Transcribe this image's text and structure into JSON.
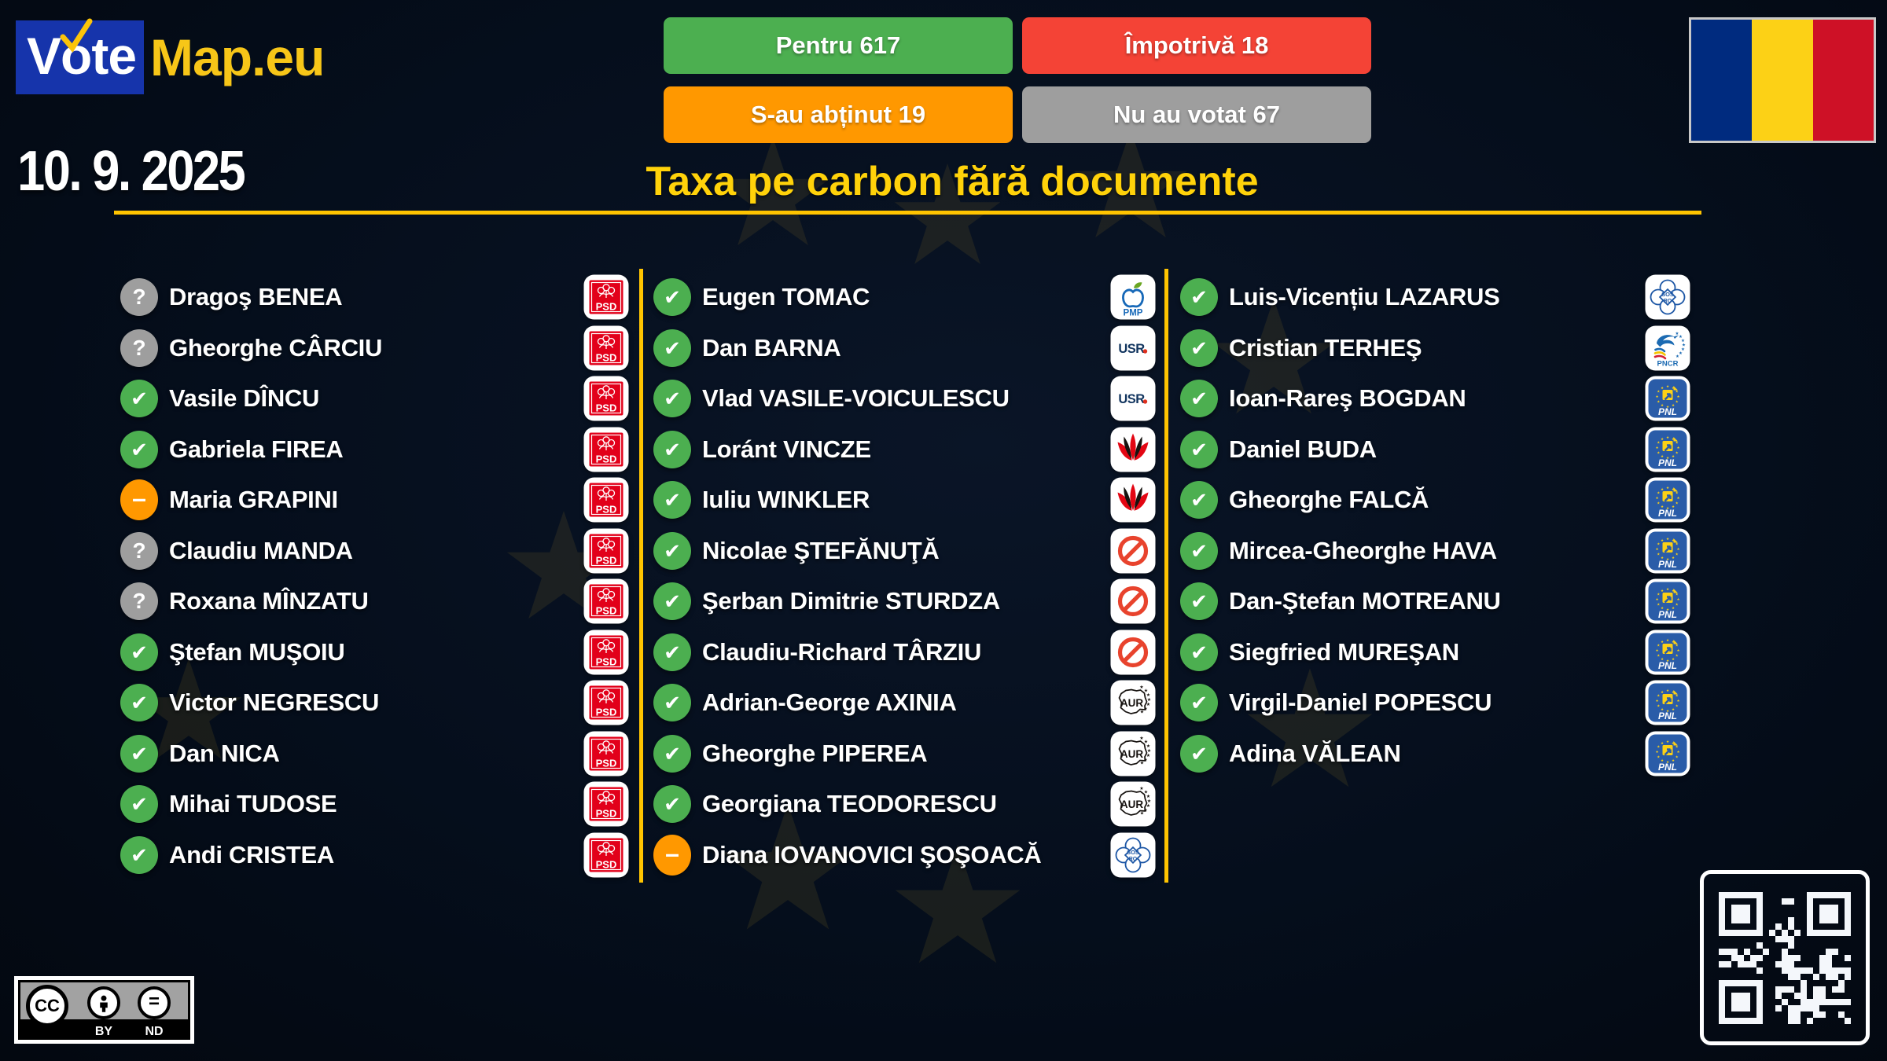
{
  "brand": {
    "vote_v": "V",
    "vote_o": "o",
    "vote_te": "te",
    "map": "Map.eu"
  },
  "date": "10. 9. 2025",
  "title": "Taxa pe carbon fără documente",
  "summary_buttons": [
    {
      "id": "for",
      "label": "Pentru 617",
      "color": "#4caf50"
    },
    {
      "id": "against",
      "label": "Împotrivă 18",
      "color": "#f44336"
    },
    {
      "id": "abstain",
      "label": "S-au abținut 19",
      "color": "#ff9800"
    },
    {
      "id": "novote",
      "label": "Nu au votat 67",
      "color": "#9e9e9e"
    }
  ],
  "status_glyphs": {
    "for": "✔",
    "abstain": "–",
    "novote": "?"
  },
  "status_colors": {
    "for": "#4caf50",
    "abstain": "#ff9800",
    "novote": "#9e9e9e"
  },
  "party_labels": {
    "PSD": "PSD",
    "PMP": "PMP",
    "USR": "USR.",
    "AUR": "AUR",
    "SOS": "SOS RO",
    "PNCR": "PNCR",
    "PNL": "PNL"
  },
  "columns": [
    {
      "rows": [
        {
          "name": "Dragoş BENEA",
          "vote": "novote",
          "party": "PSD"
        },
        {
          "name": "Gheorghe CÂRCIU",
          "vote": "novote",
          "party": "PSD"
        },
        {
          "name": "Vasile DÎNCU",
          "vote": "for",
          "party": "PSD"
        },
        {
          "name": "Gabriela FIREA",
          "vote": "for",
          "party": "PSD"
        },
        {
          "name": "Maria GRAPINI",
          "vote": "abstain",
          "party": "PSD"
        },
        {
          "name": "Claudiu MANDA",
          "vote": "novote",
          "party": "PSD"
        },
        {
          "name": "Roxana MÎNZATU",
          "vote": "novote",
          "party": "PSD"
        },
        {
          "name": "Ştefan MUŞOIU",
          "vote": "for",
          "party": "PSD"
        },
        {
          "name": "Victor NEGRESCU",
          "vote": "for",
          "party": "PSD"
        },
        {
          "name": "Dan NICA",
          "vote": "for",
          "party": "PSD"
        },
        {
          "name": "Mihai TUDOSE",
          "vote": "for",
          "party": "PSD"
        },
        {
          "name": "Andi CRISTEA",
          "vote": "for",
          "party": "PSD"
        }
      ]
    },
    {
      "rows": [
        {
          "name": "Eugen TOMAC",
          "vote": "for",
          "party": "PMP"
        },
        {
          "name": "Dan BARNA",
          "vote": "for",
          "party": "USR"
        },
        {
          "name": "Vlad VASILE-VOICULESCU",
          "vote": "for",
          "party": "USR"
        },
        {
          "name": "Loránt VINCZE",
          "vote": "for",
          "party": "UDMR"
        },
        {
          "name": "Iuliu WINKLER",
          "vote": "for",
          "party": "UDMR"
        },
        {
          "name": "Nicolae ŞTEFĂNUŢĂ",
          "vote": "for",
          "party": "IND"
        },
        {
          "name": "Şerban Dimitrie STURDZA",
          "vote": "for",
          "party": "IND"
        },
        {
          "name": "Claudiu-Richard TÂRZIU",
          "vote": "for",
          "party": "IND"
        },
        {
          "name": "Adrian-George AXINIA",
          "vote": "for",
          "party": "AUR"
        },
        {
          "name": "Gheorghe PIPEREA",
          "vote": "for",
          "party": "AUR"
        },
        {
          "name": "Georgiana TEODORESCU",
          "vote": "for",
          "party": "AUR"
        },
        {
          "name": "Diana IOVANOVICI ŞOŞOACĂ",
          "vote": "abstain",
          "party": "SOS"
        }
      ]
    },
    {
      "rows": [
        {
          "name": "Luis-Vicențiu LAZARUS",
          "vote": "for",
          "party": "SOS"
        },
        {
          "name": "Cristian TERHEŞ",
          "vote": "for",
          "party": "PNCR"
        },
        {
          "name": "Ioan-Rareş BOGDAN",
          "vote": "for",
          "party": "PNL"
        },
        {
          "name": "Daniel BUDA",
          "vote": "for",
          "party": "PNL"
        },
        {
          "name": "Gheorghe FALCĂ",
          "vote": "for",
          "party": "PNL"
        },
        {
          "name": "Mircea-Gheorghe HAVA",
          "vote": "for",
          "party": "PNL"
        },
        {
          "name": "Dan-Ştefan MOTREANU",
          "vote": "for",
          "party": "PNL"
        },
        {
          "name": "Siegfried MUREŞAN",
          "vote": "for",
          "party": "PNL"
        },
        {
          "name": "Virgil-Daniel POPESCU",
          "vote": "for",
          "party": "PNL"
        },
        {
          "name": "Adina VĂLEAN",
          "vote": "for",
          "party": "PNL"
        }
      ]
    }
  ],
  "license": {
    "cc": "CC",
    "by": "BY",
    "nd": "ND"
  },
  "accent_colors": {
    "yellow_line": "#ffc400",
    "title_yellow": "#ffd20a",
    "background": "#050e1c"
  },
  "flag_colors": [
    "#002B7F",
    "#FCD116",
    "#CE1126"
  ]
}
